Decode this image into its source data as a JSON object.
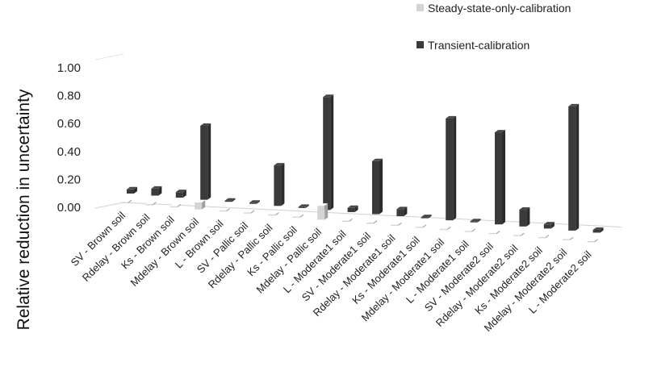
{
  "chart_data": {
    "type": "bar",
    "ylabel": "Relative reduction in uncertainty",
    "ylim": [
      0,
      1
    ],
    "yticks": [
      "0.00",
      "0.20",
      "0.40",
      "0.60",
      "0.80",
      "1.00"
    ],
    "grid": false,
    "legend_position": "top-right",
    "categories": [
      "SV - Brown soil",
      "Rdelay - Brown soil",
      "Ks - Brown soil",
      "Mdelay - Brown soil",
      "L - Brown soil",
      "SV - Pallic soil",
      "Rdelay - Pallic soil",
      "Ks - Pallic soil",
      "Mdelay - Pallic soil",
      "L - Moderate1 soil",
      "SV - Moderate1 soil",
      "Rdelay - Moderate1 soil",
      "Ks - Moderate1 soil",
      "Mdelay - Moderate1 soil",
      "L - Moderate1 soil",
      "SV - Moderate2 soil",
      "Rdelay - Moderate2 soil",
      "Ks - Moderate2 soil",
      "Mdelay - Moderate2 soil",
      "L - Moderate2 soil"
    ],
    "series": [
      {
        "name": "Steady-state-only-calibration",
        "color": "#d4d4d4",
        "values": [
          0.0,
          0.0,
          0.0,
          0.05,
          0.0,
          0.0,
          0.0,
          0.0,
          0.1,
          0.0,
          0.0,
          0.0,
          0.0,
          0.0,
          0.0,
          0.0,
          0.0,
          0.0,
          0.0,
          0.0
        ]
      },
      {
        "name": "Transient-calibration",
        "color": "#3a3a3a",
        "values": [
          0.03,
          0.05,
          0.04,
          0.53,
          0.0,
          0.0,
          0.29,
          0.0,
          0.81,
          0.03,
          0.38,
          0.05,
          0.0,
          0.73,
          0.0,
          0.66,
          0.12,
          0.03,
          0.89,
          0.02
        ]
      }
    ]
  }
}
